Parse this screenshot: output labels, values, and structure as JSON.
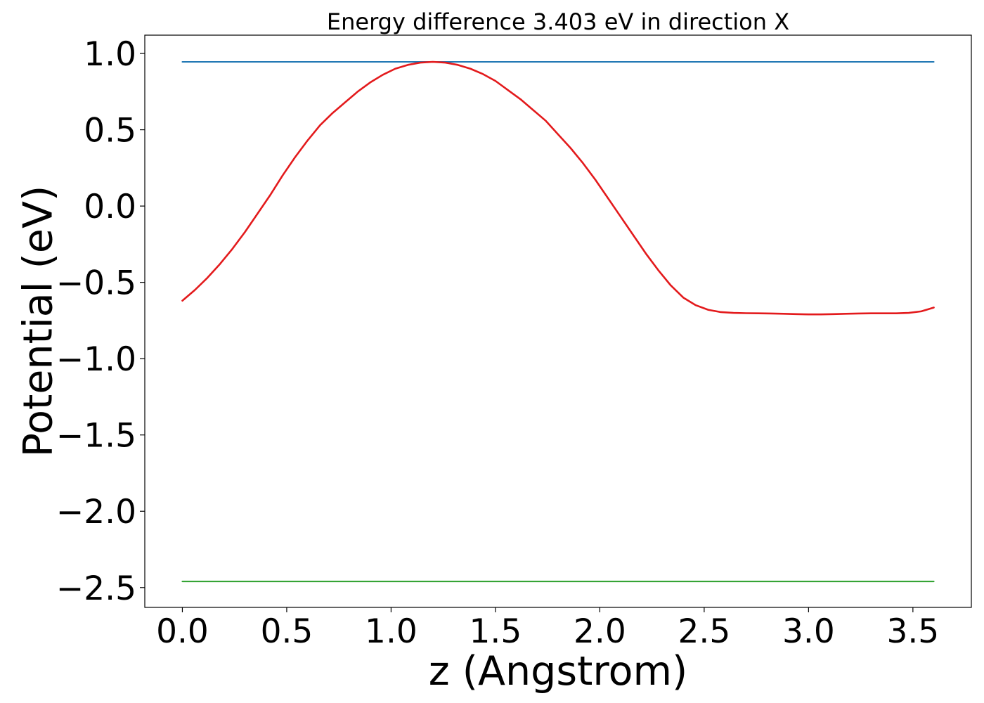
{
  "chart_data": {
    "type": "line",
    "title": "Energy difference 3.403 eV in direction X",
    "xlabel": "z (Angstrom)",
    "ylabel": "Potential (eV)",
    "xlim": [
      -0.18,
      3.78
    ],
    "ylim": [
      -2.63,
      1.12
    ],
    "xticks": [
      0.0,
      0.5,
      1.0,
      1.5,
      2.0,
      2.5,
      3.0,
      3.5
    ],
    "xtick_labels": [
      "0.0",
      "0.5",
      "1.0",
      "1.5",
      "2.0",
      "2.5",
      "3.0",
      "3.5"
    ],
    "yticks": [
      1.0,
      0.5,
      0.0,
      -0.5,
      -1.0,
      -1.5,
      -2.0,
      -2.5
    ],
    "ytick_labels": [
      "1.0",
      "0.5",
      "0.0",
      "−0.5",
      "−1.0",
      "−1.5",
      "−2.0",
      "−2.5"
    ],
    "grid": false,
    "series": [
      {
        "color": "#1f77b4",
        "x": [
          0.0,
          3.6
        ],
        "y": [
          0.945,
          0.945
        ]
      },
      {
        "color": "#2ca02c",
        "x": [
          0.0,
          3.6
        ],
        "y": [
          -2.46,
          -2.46
        ]
      },
      {
        "color": "#e31a1c",
        "x": [
          0.0,
          0.06,
          0.12,
          0.18,
          0.24,
          0.3,
          0.36,
          0.42,
          0.48,
          0.54,
          0.6,
          0.66,
          0.72,
          0.78,
          0.84,
          0.9,
          0.96,
          1.02,
          1.08,
          1.14,
          1.2,
          1.26,
          1.32,
          1.38,
          1.44,
          1.5,
          1.56,
          1.62,
          1.68,
          1.74,
          1.8,
          1.86,
          1.92,
          1.98,
          2.04,
          2.1,
          2.16,
          2.22,
          2.28,
          2.34,
          2.4,
          2.46,
          2.52,
          2.58,
          2.64,
          2.7,
          2.76,
          2.82,
          2.88,
          2.94,
          3.0,
          3.06,
          3.12,
          3.18,
          3.24,
          3.3,
          3.36,
          3.42,
          3.48,
          3.54,
          3.6
        ],
        "y": [
          -0.62,
          -0.55,
          -0.47,
          -0.38,
          -0.28,
          -0.17,
          -0.05,
          0.07,
          0.2,
          0.32,
          0.43,
          0.53,
          0.61,
          0.68,
          0.75,
          0.81,
          0.86,
          0.9,
          0.925,
          0.94,
          0.945,
          0.94,
          0.925,
          0.9,
          0.865,
          0.82,
          0.76,
          0.7,
          0.63,
          0.56,
          0.47,
          0.38,
          0.28,
          0.17,
          0.05,
          -0.07,
          -0.19,
          -0.31,
          -0.42,
          -0.52,
          -0.6,
          -0.65,
          -0.68,
          -0.695,
          -0.7,
          -0.702,
          -0.703,
          -0.704,
          -0.706,
          -0.708,
          -0.71,
          -0.71,
          -0.708,
          -0.706,
          -0.704,
          -0.703,
          -0.703,
          -0.703,
          -0.7,
          -0.69,
          -0.665
        ]
      }
    ]
  }
}
